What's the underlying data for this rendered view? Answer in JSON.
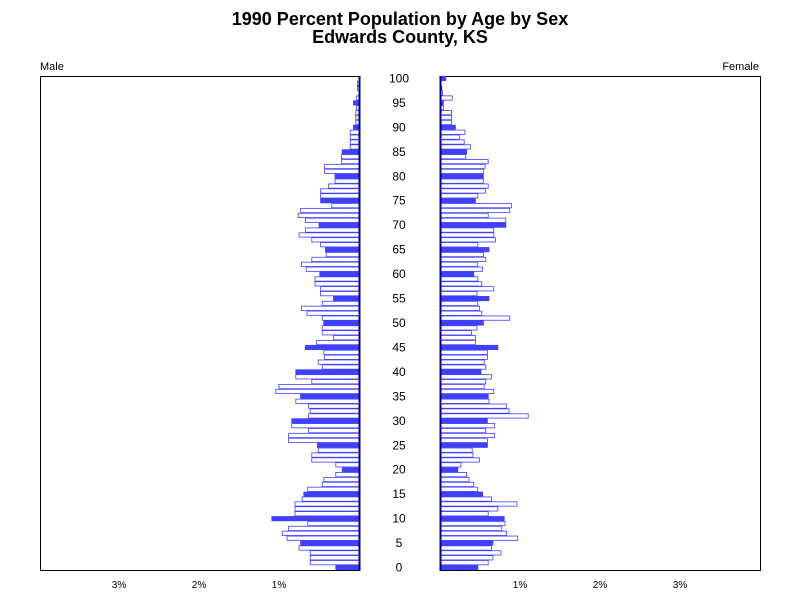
{
  "chart_data": {
    "type": "bar",
    "orientation": "horizontal",
    "title": "1990 Percent Population by Age by Sex",
    "subtitle": "Edwards County, KS",
    "left_panel_label": "Male",
    "right_panel_label": "Female",
    "age_ticks": [
      0,
      5,
      10,
      15,
      20,
      25,
      30,
      35,
      40,
      45,
      50,
      55,
      60,
      65,
      70,
      75,
      80,
      85,
      90,
      95,
      100
    ],
    "x_tick_values": [
      1,
      2,
      3
    ],
    "x_tick_labels": [
      "1%",
      "2%",
      "3%"
    ],
    "x_range": [
      0,
      4
    ],
    "age_range": [
      0,
      100
    ],
    "colors": {
      "highlight_fill": "#4040ff",
      "outline": "#4040ff",
      "plain_fill": "#ffffff",
      "axis": "#000000"
    },
    "highlight_ages": "every fifth age (0, 5, 10, ... 100)",
    "series": [
      {
        "name": "Male",
        "values": [
          0.29,
          0.61,
          0.61,
          0.61,
          0.75,
          0.73,
          0.9,
          0.96,
          0.88,
          0.64,
          1.09,
          0.8,
          0.8,
          0.8,
          0.71,
          0.69,
          0.64,
          0.46,
          0.44,
          0.29,
          0.21,
          0.29,
          0.59,
          0.59,
          0.51,
          0.52,
          0.88,
          0.88,
          0.63,
          0.84,
          0.84,
          0.63,
          0.61,
          0.63,
          0.79,
          0.73,
          1.04,
          1.0,
          0.59,
          0.79,
          0.79,
          0.46,
          0.51,
          0.43,
          0.44,
          0.67,
          0.53,
          0.32,
          0.46,
          0.46,
          0.44,
          0.46,
          0.65,
          0.72,
          0.46,
          0.32,
          0.48,
          0.48,
          0.55,
          0.55,
          0.49,
          0.66,
          0.72,
          0.59,
          0.41,
          0.42,
          0.48,
          0.59,
          0.75,
          0.67,
          0.5,
          0.67,
          0.76,
          0.73,
          0.34,
          0.48,
          0.48,
          0.48,
          0.38,
          0.3,
          0.3,
          0.43,
          0.43,
          0.22,
          0.22,
          0.21,
          0.11,
          0.11,
          0.11,
          0.11,
          0.07,
          0.04,
          0.04,
          0.04,
          0.03,
          0.07,
          0.03,
          0.0,
          0.02,
          0.02,
          0.0
        ]
      },
      {
        "name": "Female",
        "values": [
          0.46,
          0.59,
          0.65,
          0.75,
          0.63,
          0.65,
          0.96,
          0.82,
          0.76,
          0.8,
          0.79,
          0.59,
          0.71,
          0.95,
          0.63,
          0.52,
          0.46,
          0.41,
          0.35,
          0.32,
          0.21,
          0.25,
          0.48,
          0.4,
          0.39,
          0.58,
          0.58,
          0.67,
          0.56,
          0.67,
          0.58,
          1.09,
          0.85,
          0.82,
          0.6,
          0.59,
          0.66,
          0.54,
          0.56,
          0.63,
          0.5,
          0.56,
          0.54,
          0.58,
          0.58,
          0.71,
          0.43,
          0.43,
          0.38,
          0.45,
          0.53,
          0.86,
          0.51,
          0.48,
          0.46,
          0.6,
          0.45,
          0.66,
          0.51,
          0.46,
          0.41,
          0.52,
          0.46,
          0.56,
          0.53,
          0.6,
          0.46,
          0.68,
          0.66,
          0.66,
          0.81,
          0.81,
          0.59,
          0.86,
          0.88,
          0.43,
          0.46,
          0.56,
          0.59,
          0.53,
          0.53,
          0.53,
          0.55,
          0.59,
          0.31,
          0.32,
          0.37,
          0.29,
          0.23,
          0.3,
          0.18,
          0.13,
          0.13,
          0.13,
          0.03,
          0.03,
          0.14,
          0.02,
          0.01,
          0.0,
          0.06
        ]
      }
    ]
  }
}
